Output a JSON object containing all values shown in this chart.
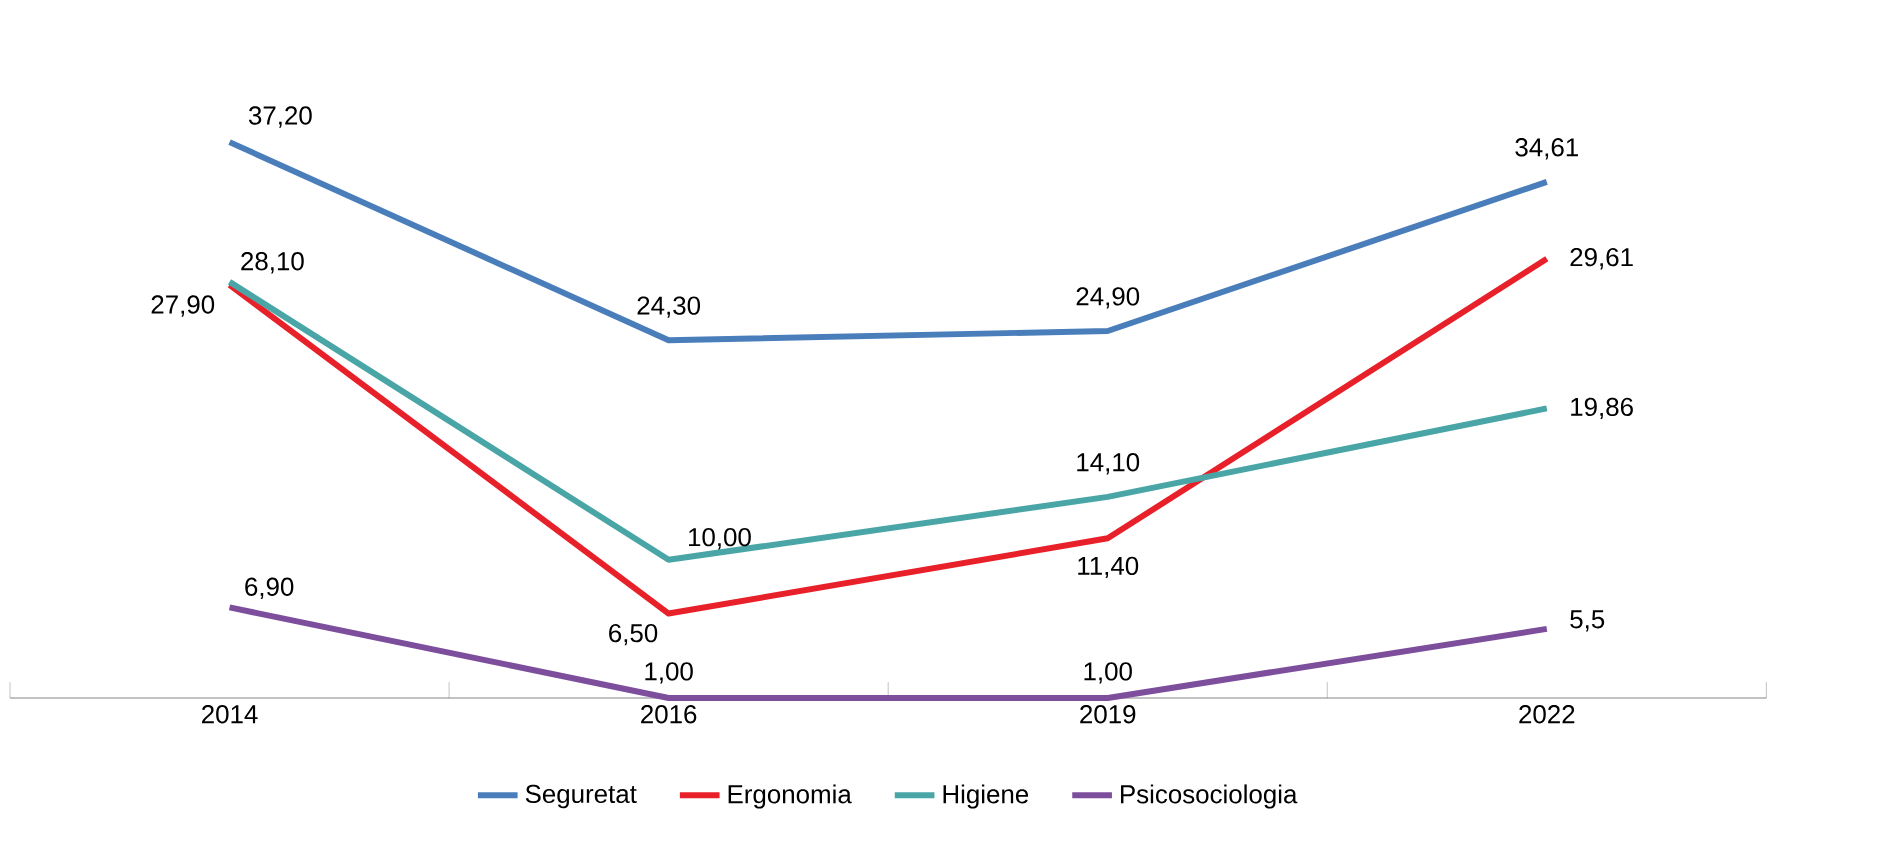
{
  "chart_data": {
    "type": "line",
    "categories": [
      "2014",
      "2016",
      "2019",
      "2022"
    ],
    "series": [
      {
        "name": "Seguretat",
        "color": "#4a7ebb",
        "values": [
          37.2,
          24.3,
          24.9,
          34.61
        ],
        "value_labels": [
          "37,20",
          "24,30",
          "24,90",
          "34,61"
        ]
      },
      {
        "name": "Ergonomia",
        "color": "#e8202a",
        "values": [
          27.9,
          6.5,
          11.4,
          29.61
        ],
        "value_labels": [
          "27,90",
          "6,50",
          "11,40",
          "29,61"
        ]
      },
      {
        "name": "Higiene",
        "color": "#4aa6a6",
        "values": [
          28.1,
          10.0,
          14.1,
          19.86
        ],
        "value_labels": [
          "28,10",
          "10,00",
          "14,10",
          "19,86"
        ]
      },
      {
        "name": "Psicosociologia",
        "color": "#7d4e9c",
        "values": [
          6.9,
          1.0,
          1.0,
          5.5
        ],
        "value_labels": [
          "6,90",
          "1,00",
          "1,00",
          "5,5"
        ]
      }
    ],
    "tick_labels": "x",
    "legend": "bottom",
    "grid": false,
    "marker": "none",
    "line_style": "solid"
  }
}
